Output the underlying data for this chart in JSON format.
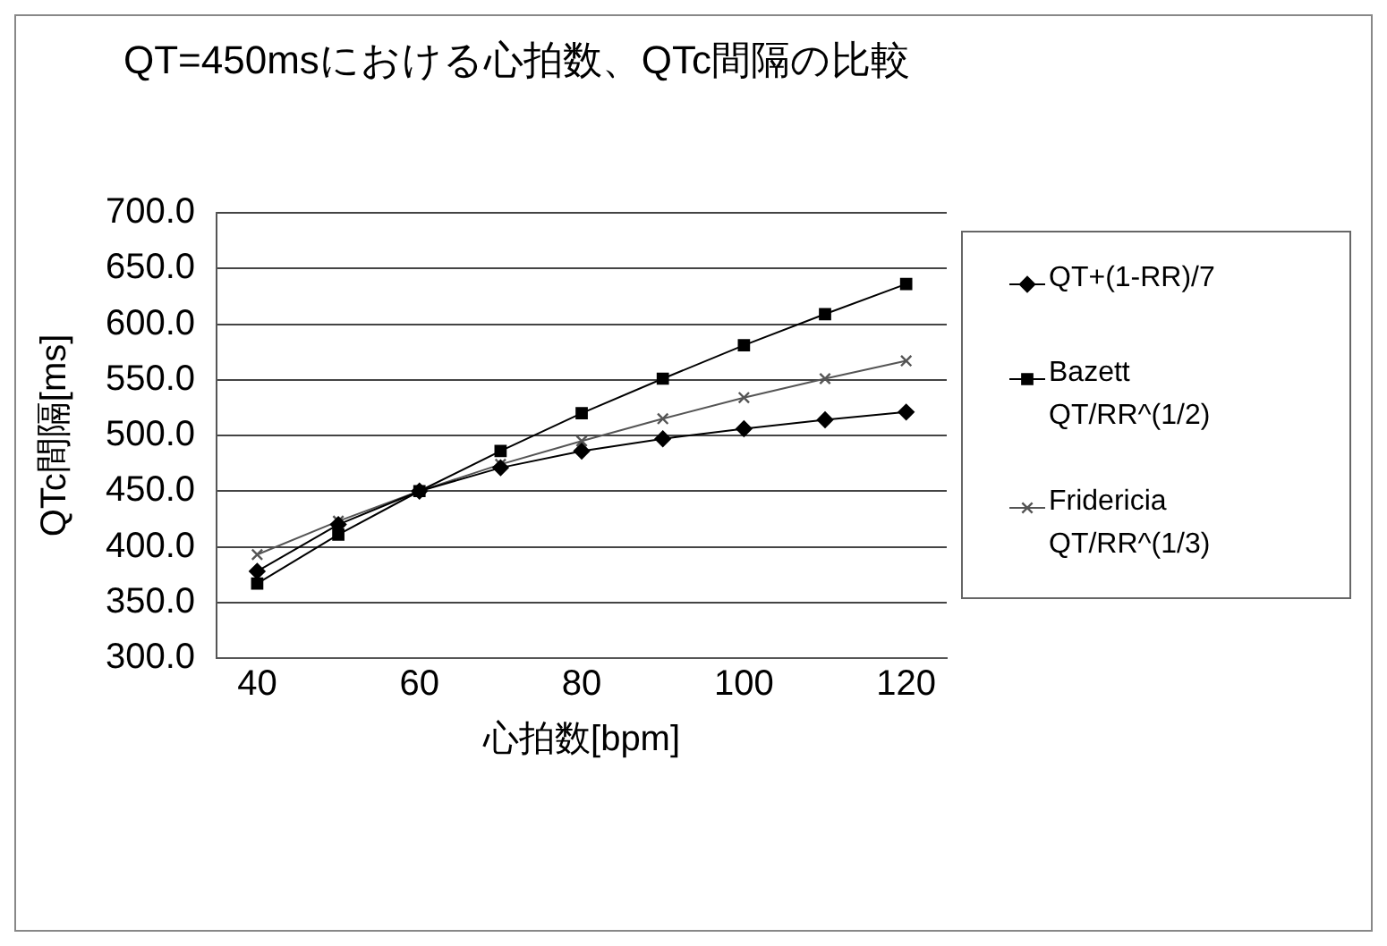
{
  "chart_data": {
    "type": "line",
    "title": "QT=450msにおける心拍数、QTc間隔の比較",
    "xlabel": "心拍数[bpm]",
    "ylabel": "QTc間隔[ms]",
    "x": [
      40,
      50,
      60,
      70,
      80,
      90,
      100,
      110,
      120
    ],
    "series": [
      {
        "name": "QT+(1-RR)/7",
        "color": "#000000",
        "marker": "diamond",
        "values": [
          378,
          420,
          450,
          471,
          486,
          497,
          506,
          514,
          521
        ]
      },
      {
        "name": "Bazett QT/RR^(1/2)",
        "color": "#000000",
        "marker": "square",
        "values": [
          367,
          411,
          450,
          486,
          520,
          551,
          581,
          609,
          636
        ]
      },
      {
        "name": "Fridericia QT/RR^(1/3)",
        "color": "#555555",
        "marker": "cross",
        "values": [
          393,
          423,
          450,
          474,
          495,
          515,
          534,
          551,
          567
        ]
      }
    ],
    "xlim": [
      35,
      125
    ],
    "xticks": [
      40,
      60,
      80,
      100,
      120
    ],
    "ylim": [
      300,
      700
    ],
    "yticks": [
      {
        "value": 300,
        "label": "300.0"
      },
      {
        "value": 350,
        "label": "350.0"
      },
      {
        "value": 400,
        "label": "400.0"
      },
      {
        "value": 450,
        "label": "450.0"
      },
      {
        "value": 500,
        "label": "500.0"
      },
      {
        "value": 550,
        "label": "550.0"
      },
      {
        "value": 600,
        "label": "600.0"
      },
      {
        "value": 650,
        "label": "650.0"
      },
      {
        "value": 700,
        "label": "700.0"
      }
    ],
    "grid": "y",
    "legend": "right"
  }
}
